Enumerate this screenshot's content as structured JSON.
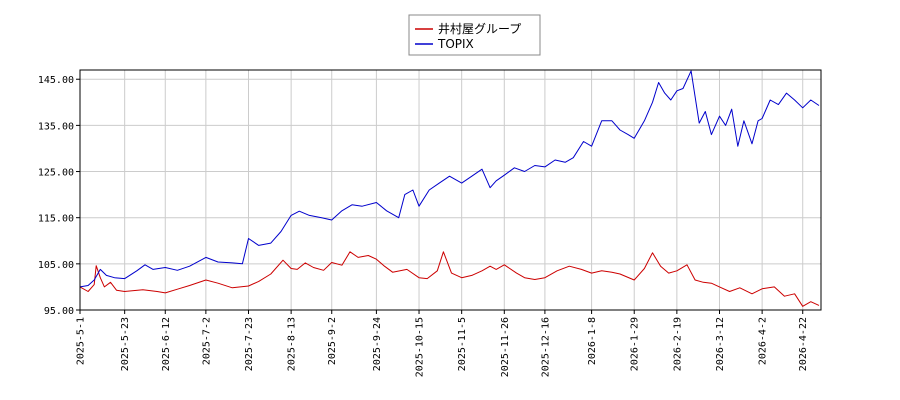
{
  "chart_data": {
    "type": "line",
    "title": "",
    "xlabel": "",
    "ylabel": "",
    "ylim": [
      95,
      147
    ],
    "yticks": [
      "145.00",
      "135.00",
      "125.00",
      "115.00",
      "105.00",
      "95.00"
    ],
    "ytick_values": [
      145,
      135,
      125,
      115,
      105,
      95
    ],
    "xlim": [
      "2025-05-01",
      "2026-05-01"
    ],
    "xticks": [
      "2025-5-1",
      "2025-5-23",
      "2025-6-12",
      "2025-7-2",
      "2025-7-23",
      "2025-8-13",
      "2025-9-2",
      "2025-9-24",
      "2025-10-15",
      "2025-11-5",
      "2025-11-26",
      "2025-12-16",
      "2026-1-8",
      "2026-1-29",
      "2026-2-19",
      "2026-3-12",
      "2026-4-2",
      "2026-4-22"
    ],
    "xtick_dates": [
      "2025-05-01",
      "2025-05-23",
      "2025-06-12",
      "2025-07-02",
      "2025-07-23",
      "2025-08-13",
      "2025-09-02",
      "2025-09-24",
      "2025-10-15",
      "2025-11-05",
      "2025-11-26",
      "2025-12-16",
      "2026-01-08",
      "2026-01-29",
      "2026-02-19",
      "2026-03-12",
      "2026-04-02",
      "2026-04-22"
    ],
    "grid": true,
    "legend_position": "top-center",
    "series": [
      {
        "name": "井村屋グループ",
        "color": "#cc0000",
        "points": [
          [
            "2025-05-01",
            100.0
          ],
          [
            "2025-05-05",
            99.0
          ],
          [
            "2025-05-08",
            100.5
          ],
          [
            "2025-05-09",
            104.6
          ],
          [
            "2025-05-11",
            102.0
          ],
          [
            "2025-05-13",
            100.0
          ],
          [
            "2025-05-16",
            101.0
          ],
          [
            "2025-05-19",
            99.3
          ],
          [
            "2025-05-23",
            99.0
          ],
          [
            "2025-06-01",
            99.4
          ],
          [
            "2025-06-08",
            99.0
          ],
          [
            "2025-06-12",
            98.7
          ],
          [
            "2025-06-18",
            99.5
          ],
          [
            "2025-06-24",
            100.3
          ],
          [
            "2025-07-02",
            101.5
          ],
          [
            "2025-07-08",
            100.8
          ],
          [
            "2025-07-15",
            99.8
          ],
          [
            "2025-07-23",
            100.2
          ],
          [
            "2025-07-28",
            101.2
          ],
          [
            "2025-08-03",
            102.8
          ],
          [
            "2025-08-09",
            105.8
          ],
          [
            "2025-08-13",
            104.0
          ],
          [
            "2025-08-16",
            103.8
          ],
          [
            "2025-08-20",
            105.2
          ],
          [
            "2025-08-24",
            104.2
          ],
          [
            "2025-08-29",
            103.6
          ],
          [
            "2025-09-02",
            105.3
          ],
          [
            "2025-09-07",
            104.7
          ],
          [
            "2025-09-11",
            107.6
          ],
          [
            "2025-09-15",
            106.4
          ],
          [
            "2025-09-20",
            106.8
          ],
          [
            "2025-09-24",
            106.0
          ],
          [
            "2025-09-28",
            104.5
          ],
          [
            "2025-10-02",
            103.2
          ],
          [
            "2025-10-09",
            103.8
          ],
          [
            "2025-10-15",
            102.0
          ],
          [
            "2025-10-19",
            101.8
          ],
          [
            "2025-10-24",
            103.5
          ],
          [
            "2025-10-27",
            107.6
          ],
          [
            "2025-10-31",
            103.0
          ],
          [
            "2025-11-05",
            102.0
          ],
          [
            "2025-11-10",
            102.5
          ],
          [
            "2025-11-15",
            103.5
          ],
          [
            "2025-11-19",
            104.5
          ],
          [
            "2025-11-22",
            103.8
          ],
          [
            "2025-11-26",
            104.8
          ],
          [
            "2025-12-02",
            103.0
          ],
          [
            "2025-12-06",
            102.0
          ],
          [
            "2025-12-11",
            101.6
          ],
          [
            "2025-12-16",
            102.0
          ],
          [
            "2025-12-22",
            103.5
          ],
          [
            "2025-12-28",
            104.5
          ],
          [
            "2026-01-03",
            103.8
          ],
          [
            "2026-01-08",
            103.0
          ],
          [
            "2026-01-13",
            103.5
          ],
          [
            "2026-01-18",
            103.2
          ],
          [
            "2026-01-22",
            102.8
          ],
          [
            "2026-01-29",
            101.5
          ],
          [
            "2026-02-03",
            104.0
          ],
          [
            "2026-02-07",
            107.4
          ],
          [
            "2026-02-11",
            104.5
          ],
          [
            "2026-02-15",
            103.0
          ],
          [
            "2026-02-19",
            103.5
          ],
          [
            "2026-02-24",
            104.8
          ],
          [
            "2026-02-28",
            101.5
          ],
          [
            "2026-03-04",
            101.0
          ],
          [
            "2026-03-08",
            100.8
          ],
          [
            "2026-03-12",
            100.0
          ],
          [
            "2026-03-17",
            99.0
          ],
          [
            "2026-03-22",
            99.8
          ],
          [
            "2026-03-28",
            98.5
          ],
          [
            "2026-04-02",
            99.6
          ],
          [
            "2026-04-08",
            100.0
          ],
          [
            "2026-04-13",
            98.0
          ],
          [
            "2026-04-18",
            98.5
          ],
          [
            "2026-04-22",
            95.8
          ],
          [
            "2026-04-26",
            96.8
          ],
          [
            "2026-04-30",
            96.0
          ]
        ]
      },
      {
        "name": "TOPIX",
        "color": "#0000cc",
        "points": [
          [
            "2025-05-01",
            100.0
          ],
          [
            "2025-05-05",
            100.3
          ],
          [
            "2025-05-08",
            101.5
          ],
          [
            "2025-05-11",
            103.8
          ],
          [
            "2025-05-14",
            102.5
          ],
          [
            "2025-05-18",
            102.0
          ],
          [
            "2025-05-23",
            101.8
          ],
          [
            "2025-05-29",
            103.5
          ],
          [
            "2025-06-02",
            104.8
          ],
          [
            "2025-06-06",
            103.8
          ],
          [
            "2025-06-12",
            104.2
          ],
          [
            "2025-06-18",
            103.6
          ],
          [
            "2025-06-24",
            104.5
          ],
          [
            "2025-07-02",
            106.4
          ],
          [
            "2025-07-08",
            105.4
          ],
          [
            "2025-07-15",
            105.2
          ],
          [
            "2025-07-20",
            105.0
          ],
          [
            "2025-07-23",
            110.5
          ],
          [
            "2025-07-28",
            109.0
          ],
          [
            "2025-08-03",
            109.5
          ],
          [
            "2025-08-08",
            112.0
          ],
          [
            "2025-08-13",
            115.5
          ],
          [
            "2025-08-17",
            116.4
          ],
          [
            "2025-08-22",
            115.5
          ],
          [
            "2025-08-28",
            115.0
          ],
          [
            "2025-09-02",
            114.5
          ],
          [
            "2025-09-07",
            116.5
          ],
          [
            "2025-09-12",
            117.8
          ],
          [
            "2025-09-17",
            117.5
          ],
          [
            "2025-09-24",
            118.3
          ],
          [
            "2025-09-29",
            116.5
          ],
          [
            "2025-10-05",
            115.0
          ],
          [
            "2025-10-08",
            120.0
          ],
          [
            "2025-10-12",
            121.0
          ],
          [
            "2025-10-15",
            117.5
          ],
          [
            "2025-10-20",
            121.0
          ],
          [
            "2025-10-25",
            122.5
          ],
          [
            "2025-10-30",
            124.0
          ],
          [
            "2025-11-05",
            122.5
          ],
          [
            "2025-11-10",
            124.0
          ],
          [
            "2025-11-15",
            125.5
          ],
          [
            "2025-11-19",
            121.5
          ],
          [
            "2025-11-22",
            123.0
          ],
          [
            "2025-11-26",
            124.2
          ],
          [
            "2025-12-01",
            125.8
          ],
          [
            "2025-12-06",
            125.0
          ],
          [
            "2025-12-11",
            126.3
          ],
          [
            "2025-12-16",
            126.0
          ],
          [
            "2025-12-21",
            127.5
          ],
          [
            "2025-12-26",
            127.0
          ],
          [
            "2025-12-30",
            128.0
          ],
          [
            "2026-01-04",
            131.5
          ],
          [
            "2026-01-08",
            130.5
          ],
          [
            "2026-01-13",
            136.0
          ],
          [
            "2026-01-18",
            136.0
          ],
          [
            "2026-01-22",
            134.0
          ],
          [
            "2026-01-26",
            133.0
          ],
          [
            "2026-01-29",
            132.2
          ],
          [
            "2026-02-03",
            136.0
          ],
          [
            "2026-02-07",
            140.0
          ],
          [
            "2026-02-10",
            144.3
          ],
          [
            "2026-02-13",
            142.0
          ],
          [
            "2026-02-16",
            140.5
          ],
          [
            "2026-02-19",
            142.5
          ],
          [
            "2026-02-22",
            143.0
          ],
          [
            "2026-02-26",
            146.8
          ],
          [
            "2026-03-02",
            135.5
          ],
          [
            "2026-03-05",
            138.0
          ],
          [
            "2026-03-08",
            133.0
          ],
          [
            "2026-03-12",
            137.0
          ],
          [
            "2026-03-15",
            135.0
          ],
          [
            "2026-03-18",
            138.5
          ],
          [
            "2026-03-21",
            130.5
          ],
          [
            "2026-03-24",
            136.0
          ],
          [
            "2026-03-28",
            131.0
          ],
          [
            "2026-03-31",
            136.0
          ],
          [
            "2026-04-02",
            136.5
          ],
          [
            "2026-04-06",
            140.5
          ],
          [
            "2026-04-10",
            139.5
          ],
          [
            "2026-04-14",
            142.0
          ],
          [
            "2026-04-18",
            140.5
          ],
          [
            "2026-04-22",
            138.8
          ],
          [
            "2026-04-26",
            140.5
          ],
          [
            "2026-04-30",
            139.3
          ]
        ]
      }
    ]
  }
}
